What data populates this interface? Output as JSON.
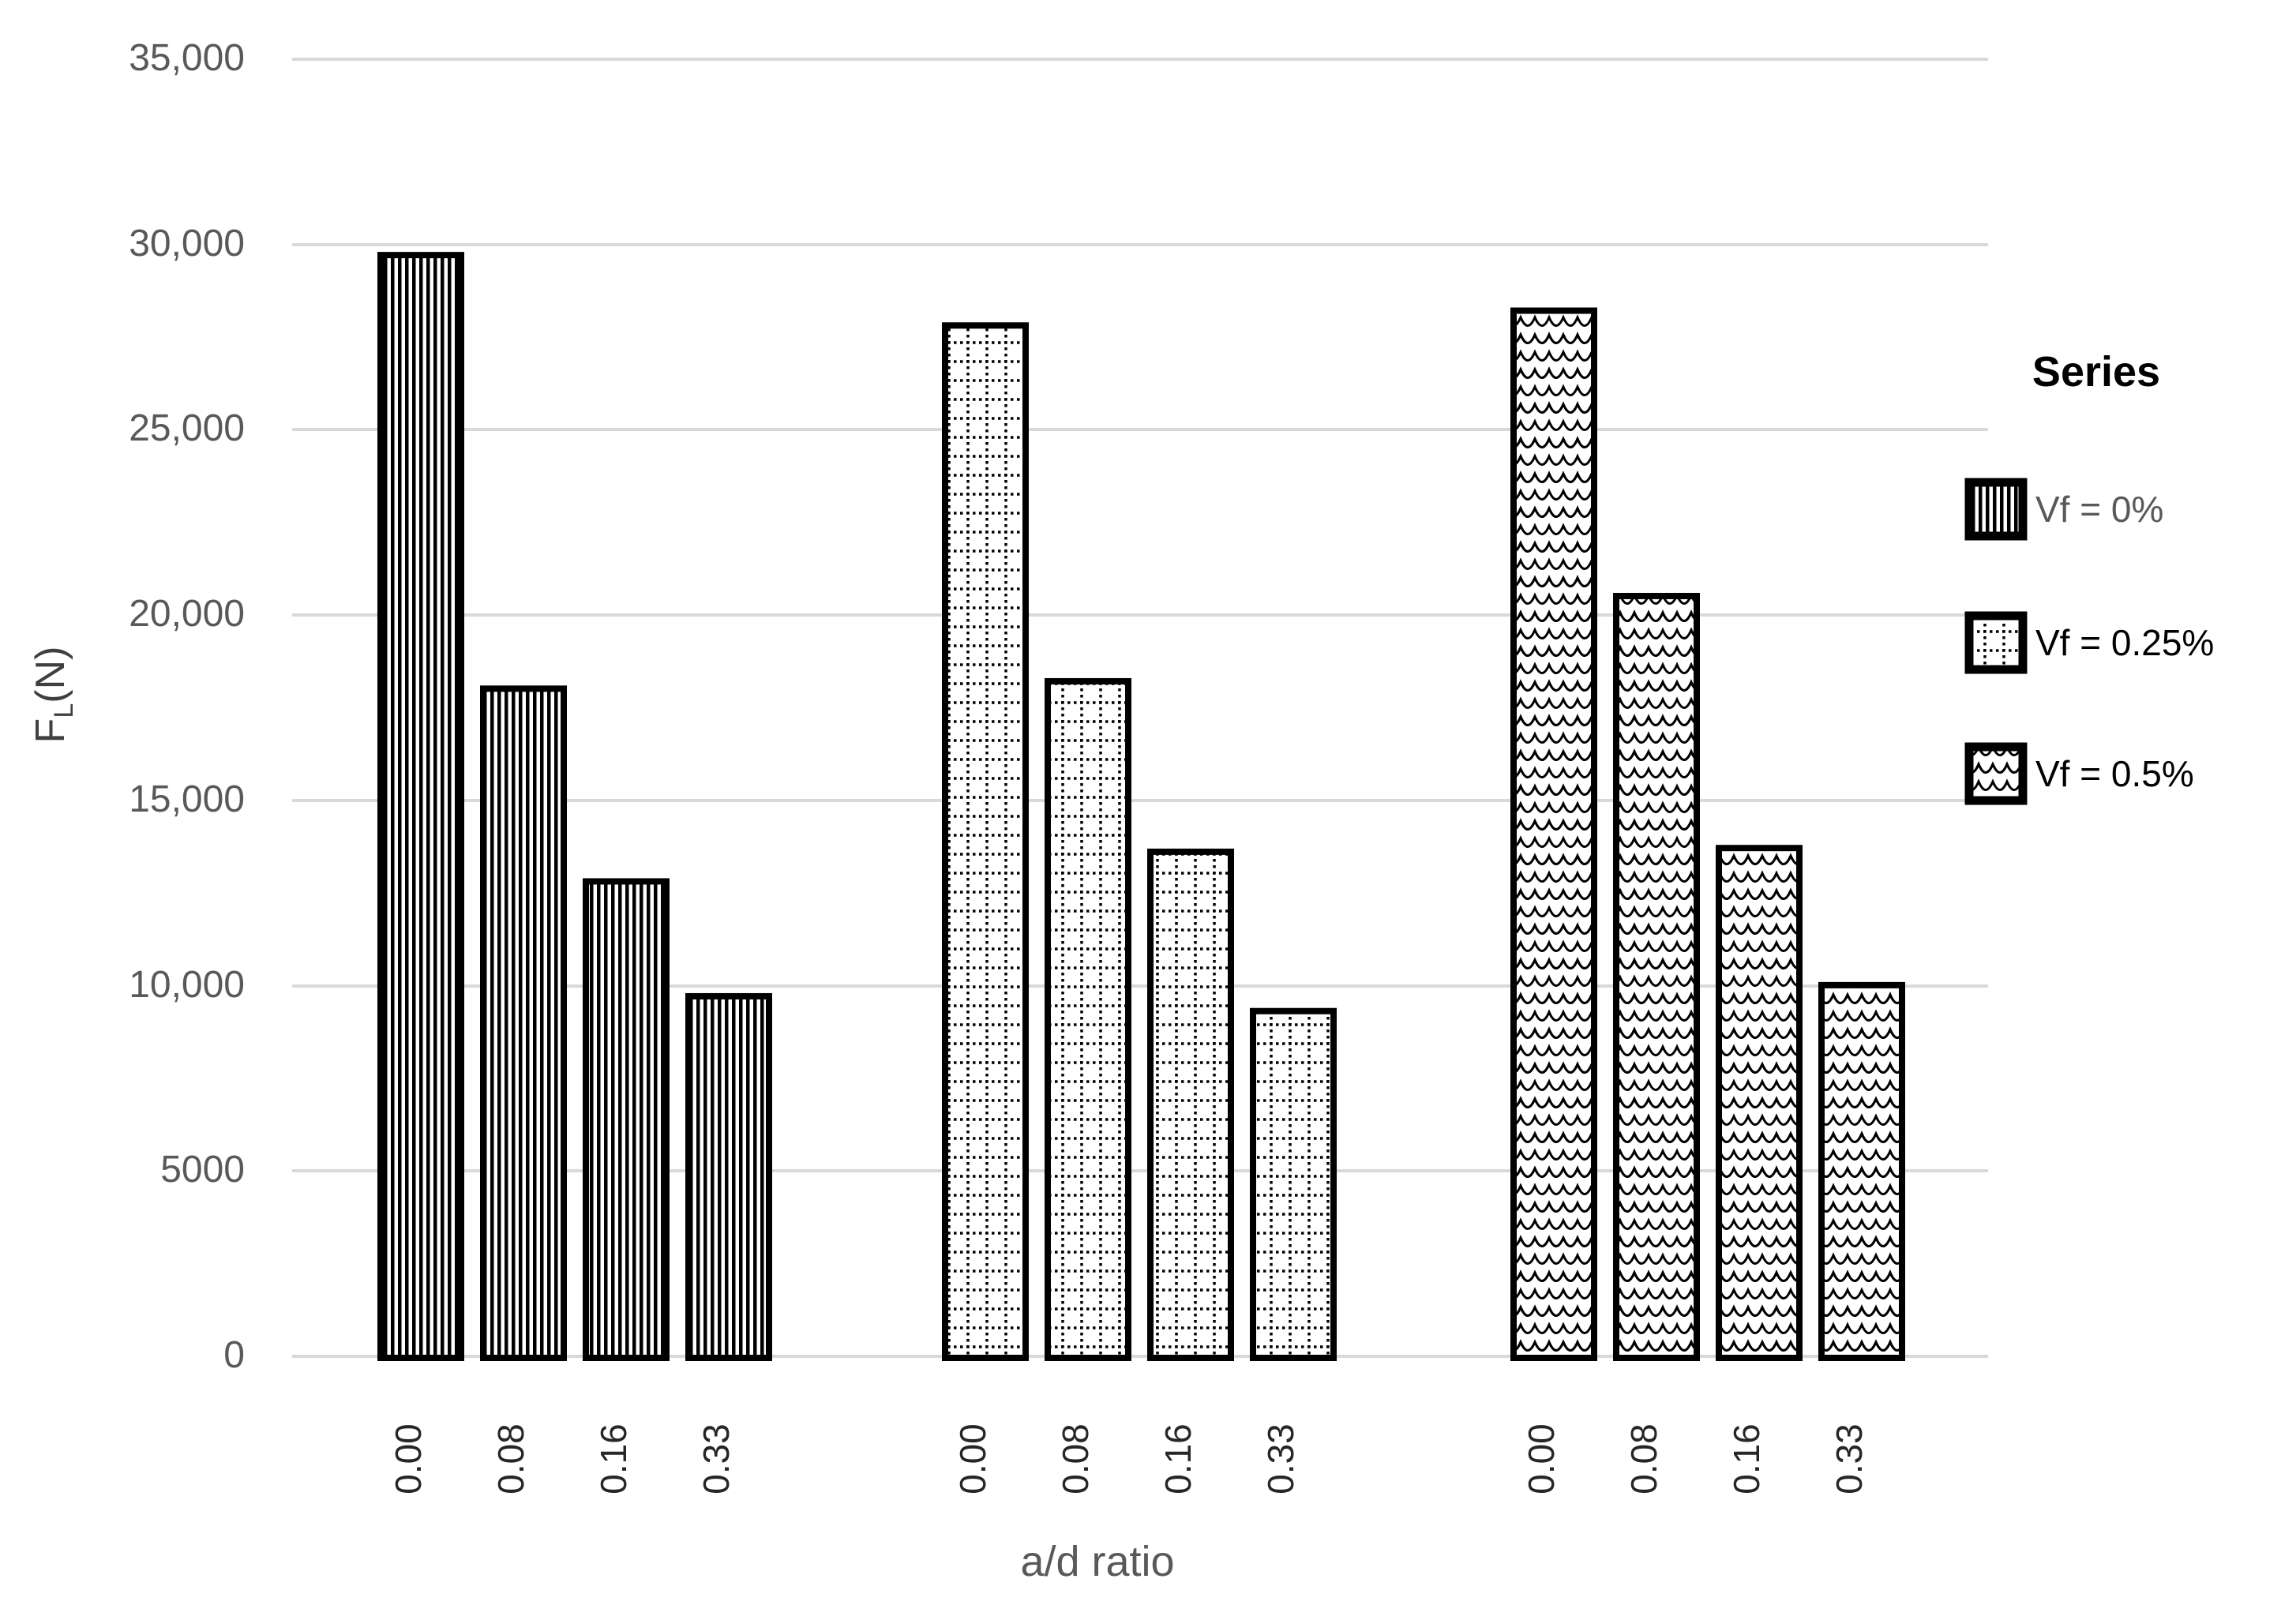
{
  "chart_data": {
    "type": "bar",
    "title": "",
    "xlabel": "a/d ratio",
    "ylabel": {
      "base": "F",
      "sub": "L",
      "suffix": "(N)"
    },
    "ylim": [
      0,
      35000
    ],
    "ytick_labels": [
      "35,000",
      "30,000",
      "25,000",
      "20,000",
      "15,000",
      "10,000",
      "5000",
      "0"
    ],
    "ytick_values": [
      35000,
      30000,
      25000,
      20000,
      15000,
      10000,
      5000,
      0
    ],
    "categories": [
      "0.00",
      "0.08",
      "0.16",
      "0.33"
    ],
    "series": [
      {
        "name": "Vf = 0%",
        "pattern": "vertical-lines",
        "values": [
          29800,
          18100,
          12900,
          9800
        ]
      },
      {
        "name": "Vf = 0.25%",
        "pattern": "dotted-grid",
        "values": [
          27900,
          18300,
          13700,
          9400
        ]
      },
      {
        "name": "Vf = 0.5%",
        "pattern": "waves",
        "values": [
          28300,
          20600,
          13800,
          10100
        ]
      }
    ],
    "legend": {
      "title": "Series",
      "position": "right"
    },
    "grid": true
  },
  "colors": {
    "background": "#ffffff",
    "gridline": "#d9d9d9",
    "bar_fill": "#ffffff",
    "bar_stroke": "#000000",
    "ytick_label": "#595959",
    "xtick_label": "#262626",
    "xlabel": "#595959",
    "ylabel": "#404040",
    "legend_title": "#000000",
    "legend_label_colors": [
      "#595959",
      "#000000",
      "#000000"
    ]
  }
}
